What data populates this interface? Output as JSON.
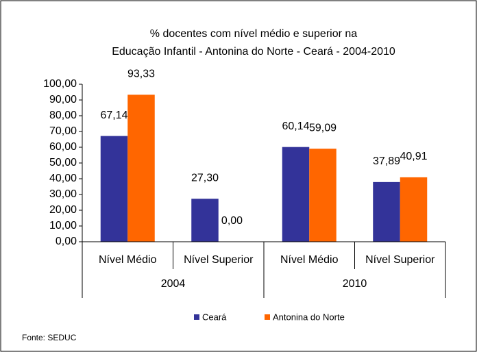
{
  "chart_data": {
    "type": "bar",
    "title": [
      "% docentes com nível médio e superior na",
      "Educação Infantil - Antonina do Norte -  Ceará - 2004-2010"
    ],
    "categories": [
      "Nível Médio",
      "Nível Superior",
      "Nível Médio",
      "Nível Superior"
    ],
    "group_labels": [
      "2004",
      "2010"
    ],
    "series": [
      {
        "name": "Ceará",
        "color": "#333399",
        "values": [
          67.14,
          27.3,
          60.14,
          37.89
        ],
        "value_labels": [
          "67,14",
          "27,30",
          "60,14",
          "37,89"
        ]
      },
      {
        "name": "Antonina do Norte",
        "color": "#ff6600",
        "values": [
          93.33,
          0.0,
          59.09,
          40.91
        ],
        "value_labels": [
          "93,33",
          "0,00",
          "59,09",
          "40,91"
        ]
      }
    ],
    "ylim": [
      0,
      100
    ],
    "yticks": [
      {
        "value": 0,
        "label": "0,00"
      },
      {
        "value": 10,
        "label": "10,00"
      },
      {
        "value": 20,
        "label": "20,00"
      },
      {
        "value": 30,
        "label": "30,00"
      },
      {
        "value": 40,
        "label": "40,00"
      },
      {
        "value": 50,
        "label": "50,00"
      },
      {
        "value": 60,
        "label": "60,00"
      },
      {
        "value": 70,
        "label": "70,00"
      },
      {
        "value": 80,
        "label": "80,00"
      },
      {
        "value": 90,
        "label": "90,00"
      },
      {
        "value": 100,
        "label": "100,00"
      }
    ],
    "legend": "bottom",
    "source": "Fonte: SEDUC"
  }
}
